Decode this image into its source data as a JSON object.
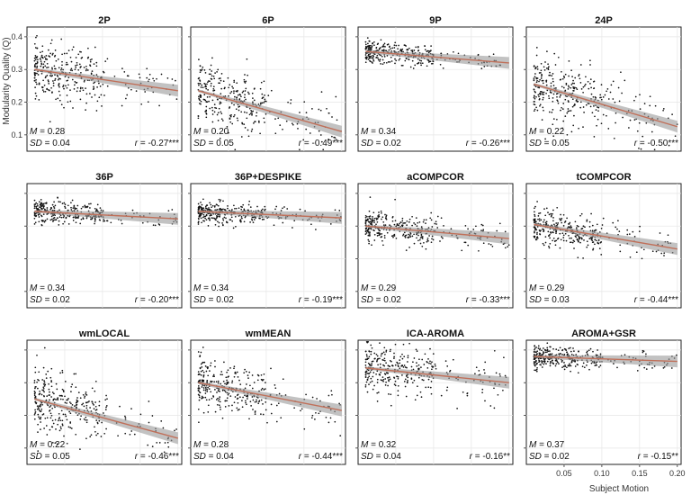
{
  "chart_data": {
    "type": "scatter",
    "ylabel": "Modularity Quality (Q)",
    "xlabel": "Subject Motion",
    "x_ticks": [
      0.05,
      0.1,
      0.15,
      0.2
    ],
    "x_tick_labels": [
      "0.05",
      "0.10",
      "0.15",
      "0.20"
    ],
    "xlim": [
      0.0,
      0.205
    ],
    "y_ticks": [
      0.1,
      0.2,
      0.3,
      0.4
    ],
    "y_tick_labels": [
      "0.1",
      "0.2",
      "0.3",
      "0.4"
    ],
    "ylim": [
      0.05,
      0.43
    ],
    "grid": true,
    "fit_line_color": "#c0705a",
    "ci_color": "#9a9a9a",
    "point_color": "#111111",
    "panels": [
      {
        "title": "2P",
        "mean": "0.28",
        "sd": "0.04",
        "r": "-0.27",
        "sig": "***",
        "fit": [
          0.3,
          0.235
        ],
        "spread": 0.045
      },
      {
        "title": "6P",
        "mean": "0.20",
        "sd": "0.05",
        "r": "-0.49",
        "sig": "***",
        "fit": [
          0.235,
          0.11
        ],
        "spread": 0.05
      },
      {
        "title": "9P",
        "mean": "0.34",
        "sd": "0.02",
        "r": "-0.26",
        "sig": "***",
        "fit": [
          0.355,
          0.32
        ],
        "spread": 0.018
      },
      {
        "title": "24P",
        "mean": "0.22",
        "sd": "0.05",
        "r": "-0.50",
        "sig": "***",
        "fit": [
          0.255,
          0.125
        ],
        "spread": 0.05
      },
      {
        "title": "36P",
        "mean": "0.34",
        "sd": "0.02",
        "r": "-0.20",
        "sig": "***",
        "fit": [
          0.345,
          0.322
        ],
        "spread": 0.018
      },
      {
        "title": "36P+DESPIKE",
        "mean": "0.34",
        "sd": "0.02",
        "r": "-0.19",
        "sig": "***",
        "fit": [
          0.345,
          0.325
        ],
        "spread": 0.018
      },
      {
        "title": "aCOMPCOR",
        "mean": "0.29",
        "sd": "0.02",
        "r": "-0.33",
        "sig": "***",
        "fit": [
          0.3,
          0.262
        ],
        "spread": 0.025
      },
      {
        "title": "tCOMPCOR",
        "mean": "0.29",
        "sd": "0.03",
        "r": "-0.44",
        "sig": "***",
        "fit": [
          0.305,
          0.23
        ],
        "spread": 0.03
      },
      {
        "title": "wmLOCAL",
        "mean": "0.22",
        "sd": "0.05",
        "r": "-0.46",
        "sig": "***",
        "fit": [
          0.25,
          0.13
        ],
        "spread": 0.05
      },
      {
        "title": "wmMEAN",
        "mean": "0.28",
        "sd": "0.04",
        "r": "-0.44",
        "sig": "***",
        "fit": [
          0.3,
          0.215
        ],
        "spread": 0.04
      },
      {
        "title": "ICA-AROMA",
        "mean": "0.32",
        "sd": "0.04",
        "r": "-0.16",
        "sig": "**",
        "fit": [
          0.345,
          0.3
        ],
        "spread": 0.04
      },
      {
        "title": "AROMA+GSR",
        "mean": "0.37",
        "sd": "0.02",
        "r": "-0.15",
        "sig": "**",
        "fit": [
          0.38,
          0.365
        ],
        "spread": 0.018
      }
    ]
  }
}
